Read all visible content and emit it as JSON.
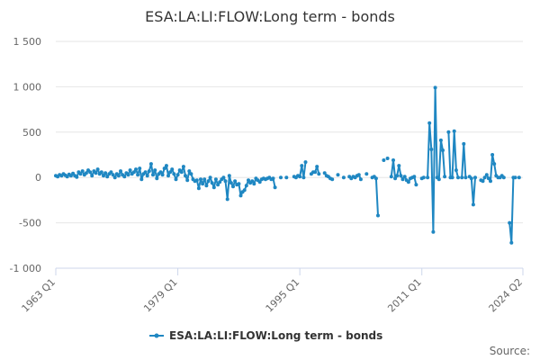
{
  "chart_data": {
    "type": "line",
    "title": "ESA:LA:LI:FLOW:Long term - bonds",
    "xlabel": "",
    "ylabel": "",
    "x_tick_labels": [
      "1963 Q1",
      "1979 Q1",
      "1995 Q1",
      "2011 Q1",
      "2024 Q2"
    ],
    "x_tick_positions": [
      1963.0,
      1979.0,
      1995.0,
      2011.0,
      2024.25
    ],
    "xlim": [
      1963.0,
      2024.25
    ],
    "y_ticks": [
      {
        "value": 1500,
        "label": "1 500"
      },
      {
        "value": 1000,
        "label": "1 000"
      },
      {
        "value": 500,
        "label": "500"
      },
      {
        "value": 0,
        "label": "0"
      },
      {
        "value": -500,
        "label": "-500"
      },
      {
        "value": -1000,
        "label": "-1 000"
      }
    ],
    "ylim": [
      -1000,
      1500
    ],
    "grid": "horizontal",
    "legend_position": "bottom",
    "color": "#1f87c2",
    "series": [
      {
        "name": "ESA:LA:LI:FLOW:Long term - bonds",
        "segments": [
          [
            [
              1963.0,
              20
            ],
            [
              1963.25,
              10
            ],
            [
              1963.5,
              30
            ],
            [
              1963.75,
              20
            ],
            [
              1964.0,
              40
            ],
            [
              1964.25,
              25
            ],
            [
              1964.5,
              10
            ],
            [
              1964.75,
              35
            ],
            [
              1965.0,
              20
            ],
            [
              1965.25,
              45
            ],
            [
              1965.5,
              20
            ],
            [
              1965.75,
              5
            ],
            [
              1966.0,
              60
            ],
            [
              1966.25,
              40
            ],
            [
              1966.5,
              70
            ],
            [
              1966.75,
              30
            ],
            [
              1967.0,
              50
            ],
            [
              1967.25,
              80
            ],
            [
              1967.5,
              60
            ],
            [
              1967.75,
              20
            ],
            [
              1968.0,
              70
            ],
            [
              1968.25,
              50
            ],
            [
              1968.5,
              90
            ],
            [
              1968.75,
              40
            ],
            [
              1969.0,
              60
            ],
            [
              1969.25,
              20
            ],
            [
              1969.5,
              50
            ],
            [
              1969.75,
              10
            ],
            [
              1970.0,
              40
            ],
            [
              1970.25,
              60
            ],
            [
              1970.5,
              30
            ],
            [
              1970.75,
              0
            ],
            [
              1971.0,
              40
            ],
            [
              1971.25,
              20
            ],
            [
              1971.5,
              70
            ],
            [
              1971.75,
              30
            ],
            [
              1972.0,
              10
            ],
            [
              1972.25,
              50
            ],
            [
              1972.5,
              30
            ],
            [
              1972.75,
              80
            ],
            [
              1973.0,
              40
            ],
            [
              1973.25,
              60
            ],
            [
              1973.5,
              90
            ],
            [
              1973.75,
              30
            ],
            [
              1974.0,
              100
            ],
            [
              1974.25,
              -20
            ],
            [
              1974.5,
              40
            ],
            [
              1974.75,
              60
            ],
            [
              1975.0,
              20
            ],
            [
              1975.25,
              70
            ],
            [
              1975.5,
              150
            ],
            [
              1975.75,
              30
            ],
            [
              1976.0,
              80
            ],
            [
              1976.25,
              -10
            ],
            [
              1976.5,
              40
            ],
            [
              1976.75,
              60
            ],
            [
              1977.0,
              30
            ],
            [
              1977.25,
              100
            ],
            [
              1977.5,
              130
            ],
            [
              1977.75,
              20
            ],
            [
              1978.0,
              60
            ],
            [
              1978.25,
              90
            ],
            [
              1978.5,
              40
            ],
            [
              1978.75,
              -20
            ],
            [
              1979.0,
              30
            ],
            [
              1979.25,
              80
            ],
            [
              1979.5,
              60
            ],
            [
              1979.75,
              120
            ],
            [
              1980.0,
              20
            ],
            [
              1980.25,
              -30
            ],
            [
              1980.5,
              70
            ],
            [
              1980.75,
              40
            ],
            [
              1981.0,
              -20
            ],
            [
              1981.25,
              -40
            ],
            [
              1981.5,
              -30
            ],
            [
              1981.75,
              -120
            ],
            [
              1982.0,
              -20
            ],
            [
              1982.25,
              -70
            ],
            [
              1982.5,
              -20
            ],
            [
              1982.75,
              -90
            ],
            [
              1983.0,
              -40
            ],
            [
              1983.25,
              0
            ],
            [
              1983.5,
              -60
            ],
            [
              1983.75,
              -110
            ],
            [
              1984.0,
              -20
            ],
            [
              1984.25,
              -80
            ],
            [
              1984.5,
              -50
            ],
            [
              1984.75,
              -20
            ],
            [
              1985.0,
              0
            ],
            [
              1985.25,
              -40
            ],
            [
              1985.5,
              -240
            ],
            [
              1985.75,
              20
            ],
            [
              1986.0,
              -60
            ],
            [
              1986.25,
              -100
            ],
            [
              1986.5,
              -40
            ],
            [
              1986.75,
              -80
            ],
            [
              1987.0,
              -70
            ],
            [
              1987.25,
              -200
            ],
            [
              1987.5,
              -160
            ],
            [
              1987.75,
              -140
            ],
            [
              1988.0,
              -90
            ],
            [
              1988.25,
              -30
            ],
            [
              1988.5,
              -60
            ],
            [
              1988.75,
              -40
            ],
            [
              1989.0,
              -70
            ],
            [
              1989.25,
              -10
            ],
            [
              1989.5,
              -30
            ],
            [
              1989.75,
              -50
            ],
            [
              1990.0,
              -20
            ],
            [
              1990.25,
              -10
            ],
            [
              1990.5,
              -20
            ],
            [
              1990.75,
              -10
            ],
            [
              1991.0,
              0
            ],
            [
              1991.25,
              -20
            ],
            [
              1991.5,
              -10
            ],
            [
              1991.75,
              -110
            ]
          ],
          [
            [
              1992.5,
              0
            ]
          ],
          [
            [
              1993.25,
              0
            ]
          ],
          [
            [
              1994.25,
              10
            ],
            [
              1994.5,
              0
            ],
            [
              1994.75,
              20
            ],
            [
              1995.0,
              10
            ],
            [
              1995.25,
              130
            ],
            [
              1995.5,
              0
            ],
            [
              1995.75,
              170
            ]
          ],
          [
            [
              1996.5,
              40
            ],
            [
              1996.75,
              60
            ],
            [
              1997.0,
              60
            ],
            [
              1997.25,
              120
            ],
            [
              1997.5,
              40
            ]
          ],
          [
            [
              1998.25,
              50
            ],
            [
              1998.5,
              20
            ],
            [
              1998.75,
              10
            ],
            [
              1999.0,
              -10
            ],
            [
              1999.25,
              -20
            ]
          ],
          [
            [
              2000.0,
              30
            ]
          ],
          [
            [
              2000.75,
              0
            ]
          ],
          [
            [
              2001.5,
              10
            ],
            [
              2001.75,
              -10
            ],
            [
              2002.0,
              10
            ],
            [
              2002.25,
              0
            ],
            [
              2002.5,
              20
            ],
            [
              2002.75,
              30
            ],
            [
              2003.0,
              -20
            ]
          ],
          [
            [
              2003.75,
              40
            ]
          ],
          [
            [
              2004.5,
              0
            ],
            [
              2004.75,
              10
            ],
            [
              2005.0,
              -10
            ],
            [
              2005.25,
              -420
            ]
          ],
          [
            [
              2006.0,
              190
            ]
          ],
          [
            [
              2006.5,
              210
            ]
          ],
          [
            [
              2007.0,
              10
            ],
            [
              2007.25,
              190
            ],
            [
              2007.5,
              -10
            ],
            [
              2007.75,
              20
            ],
            [
              2008.0,
              130
            ],
            [
              2008.25,
              20
            ],
            [
              2008.5,
              -20
            ],
            [
              2008.75,
              10
            ],
            [
              2009.0,
              -30
            ],
            [
              2009.25,
              -50
            ],
            [
              2009.5,
              -10
            ],
            [
              2009.75,
              0
            ],
            [
              2010.0,
              10
            ],
            [
              2010.25,
              -80
            ]
          ],
          [
            [
              2011.0,
              -10
            ],
            [
              2011.25,
              0
            ]
          ],
          [
            [
              2011.75,
              0
            ],
            [
              2012.0,
              600
            ],
            [
              2012.25,
              310
            ],
            [
              2012.5,
              -600
            ],
            [
              2012.75,
              990
            ],
            [
              2013.0,
              0
            ],
            [
              2013.25,
              -20
            ],
            [
              2013.5,
              410
            ],
            [
              2013.75,
              300
            ],
            [
              2014.0,
              10
            ]
          ],
          [
            [
              2014.5,
              500
            ],
            [
              2014.75,
              0
            ],
            [
              2015.0,
              0
            ],
            [
              2015.25,
              510
            ],
            [
              2015.5,
              80
            ],
            [
              2015.75,
              0
            ]
          ],
          [
            [
              2016.25,
              0
            ],
            [
              2016.5,
              370
            ],
            [
              2016.75,
              0
            ]
          ],
          [
            [
              2017.25,
              10
            ],
            [
              2017.5,
              -10
            ],
            [
              2017.75,
              -300
            ],
            [
              2018.0,
              0
            ]
          ],
          [
            [
              2018.75,
              -30
            ],
            [
              2019.0,
              -40
            ],
            [
              2019.25,
              0
            ],
            [
              2019.5,
              30
            ],
            [
              2019.75,
              -10
            ],
            [
              2020.0,
              -40
            ],
            [
              2020.25,
              250
            ],
            [
              2020.5,
              150
            ],
            [
              2020.75,
              20
            ],
            [
              2021.0,
              0
            ],
            [
              2021.25,
              0
            ],
            [
              2021.5,
              20
            ],
            [
              2021.75,
              0
            ]
          ],
          [
            [
              2022.5,
              -500
            ],
            [
              2022.75,
              -720
            ],
            [
              2023.0,
              0
            ]
          ],
          [
            [
              2023.25,
              0
            ]
          ],
          [
            [
              2023.75,
              0
            ]
          ]
        ]
      }
    ]
  },
  "credit": "Source:"
}
